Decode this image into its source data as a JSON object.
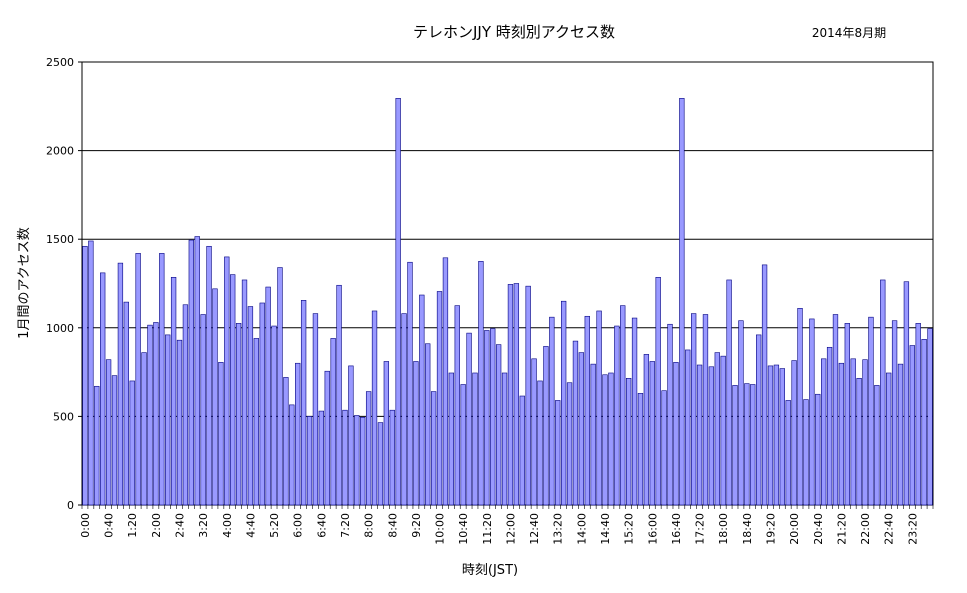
{
  "chart_data": {
    "type": "bar",
    "title": "テレホンJJY  時刻別アクセス数",
    "subtitle": "2014年8月期",
    "xlabel": "時刻(JST)",
    "ylabel": "1月間のアクセス数",
    "ylim": [
      0,
      2500
    ],
    "yticks": [
      0,
      500,
      1000,
      1500,
      2000,
      2500
    ],
    "grid": "horizontal",
    "bar_color": "#9999ff",
    "bar_edge_color": "#000080",
    "x_tick_labels": [
      "0:00",
      "0:40",
      "1:20",
      "2:00",
      "2:40",
      "3:20",
      "4:00",
      "4:40",
      "5:20",
      "6:00",
      "6:40",
      "7:20",
      "8:00",
      "8:40",
      "9:20",
      "10:00",
      "10:40",
      "11:20",
      "12:00",
      "12:40",
      "13:20",
      "14:00",
      "14:40",
      "15:20",
      "16:00",
      "16:40",
      "17:20",
      "18:00",
      "18:40",
      "19:20",
      "20:00",
      "20:40",
      "21:20",
      "22:00",
      "22:40",
      "23:20"
    ],
    "x_tick_every": 4,
    "interval_minutes": 10,
    "values": [
      1460,
      1490,
      670,
      1310,
      820,
      730,
      1365,
      1145,
      700,
      1420,
      860,
      1015,
      1030,
      1420,
      960,
      1285,
      930,
      1130,
      1495,
      1515,
      1075,
      1460,
      1220,
      805,
      1400,
      1300,
      1025,
      1270,
      1120,
      940,
      1140,
      1230,
      1010,
      1340,
      720,
      565,
      800,
      1155,
      500,
      1080,
      530,
      755,
      940,
      1240,
      535,
      785,
      505,
      495,
      640,
      1095,
      465,
      810,
      535,
      2295,
      1080,
      1370,
      810,
      1185,
      910,
      640,
      1205,
      1395,
      745,
      1125,
      680,
      970,
      745,
      1375,
      985,
      995,
      905,
      745,
      1245,
      1250,
      615,
      1235,
      825,
      700,
      895,
      1060,
      590,
      1150,
      690,
      925,
      860,
      1065,
      795,
      1095,
      735,
      745,
      1010,
      1125,
      715,
      1055,
      630,
      850,
      810,
      1285,
      645,
      1020,
      805,
      2295,
      875,
      1080,
      790,
      1075,
      780,
      860,
      840,
      1270,
      675,
      1040,
      685,
      680,
      960,
      1355,
      785,
      790,
      770,
      590,
      815,
      1110,
      595,
      1050,
      625,
      825,
      890,
      1075,
      800,
      1025,
      825,
      715,
      820,
      1060,
      675,
      1270,
      745,
      1040,
      795,
      1260,
      900,
      1025,
      935,
      995
    ]
  }
}
